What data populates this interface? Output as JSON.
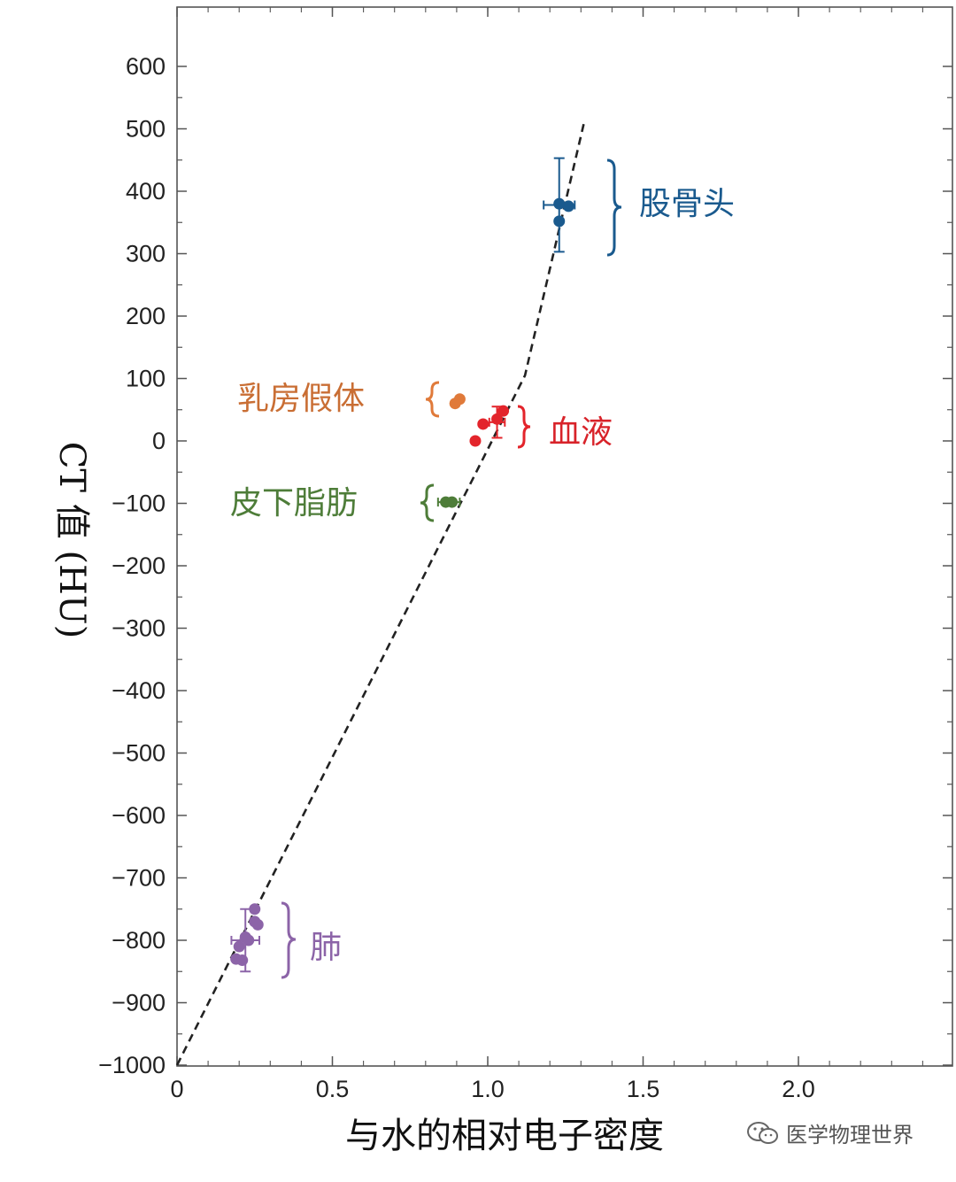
{
  "chart_data": {
    "type": "scatter",
    "title": "",
    "xlabel": "与水的相对电子密度",
    "ylabel": "CT 值 (HU)",
    "xlim": [
      0,
      2.5
    ],
    "ylim": [
      -1000,
      700
    ],
    "x_ticks": [
      0,
      0.5,
      1.0,
      1.5,
      2.0
    ],
    "x_tick_labels": [
      "0",
      "0.5",
      "1.0",
      "1.5",
      "2.0"
    ],
    "y_ticks": [
      600,
      500,
      400,
      300,
      200,
      100,
      0,
      -100,
      -200,
      -300,
      -400,
      -500,
      -600,
      -700,
      -800,
      -900,
      -1000
    ],
    "y_tick_labels": [
      "600",
      "500",
      "400",
      "300",
      "200",
      "100",
      "0",
      "−100",
      "−200",
      "−300",
      "−400",
      "−500",
      "−600",
      "−700",
      "−800",
      "−900",
      "−1000"
    ],
    "grid": false,
    "calibration_line": [
      [
        0,
        -1000
      ],
      [
        1.12,
        105
      ],
      [
        1.31,
        510
      ]
    ],
    "series": [
      {
        "name": "股骨头",
        "color": "#1a5a8e",
        "points": [
          [
            1.23,
            380
          ],
          [
            1.26,
            376
          ],
          [
            1.23,
            352
          ]
        ],
        "error_bar": {
          "x": 1.23,
          "y": 378,
          "xerr": 0.05,
          "yerr": 75
        }
      },
      {
        "name": "乳房假体",
        "color": "#e07a3a",
        "points": [
          [
            0.895,
            60
          ],
          [
            0.91,
            67
          ]
        ],
        "error_bar": null
      },
      {
        "name": "血液",
        "color": "#e3242b",
        "points": [
          [
            0.96,
            0
          ],
          [
            0.985,
            27
          ],
          [
            1.03,
            35
          ],
          [
            1.05,
            48
          ]
        ],
        "error_bar": {
          "x": 1.03,
          "y": 30,
          "xerr": 0.025,
          "yerr": 25
        }
      },
      {
        "name": "皮下脂肪",
        "color": "#4e7d39",
        "points": [
          [
            0.865,
            -98
          ],
          [
            0.885,
            -98
          ]
        ],
        "error_bar": {
          "x": 0.875,
          "y": -98,
          "xerr": 0.035,
          "yerr": 0
        }
      },
      {
        "name": "肺",
        "color": "#8c64a8",
        "points": [
          [
            0.25,
            -750
          ],
          [
            0.25,
            -770
          ],
          [
            0.26,
            -775
          ],
          [
            0.22,
            -795
          ],
          [
            0.23,
            -800
          ],
          [
            0.2,
            -810
          ],
          [
            0.19,
            -830
          ],
          [
            0.21,
            -832
          ]
        ],
        "error_bar": {
          "x": 0.22,
          "y": -800,
          "xerr": 0.045,
          "yerr": 50
        }
      }
    ]
  },
  "watermark": {
    "text": "医学物理世界",
    "icon": "wechat-icon"
  }
}
